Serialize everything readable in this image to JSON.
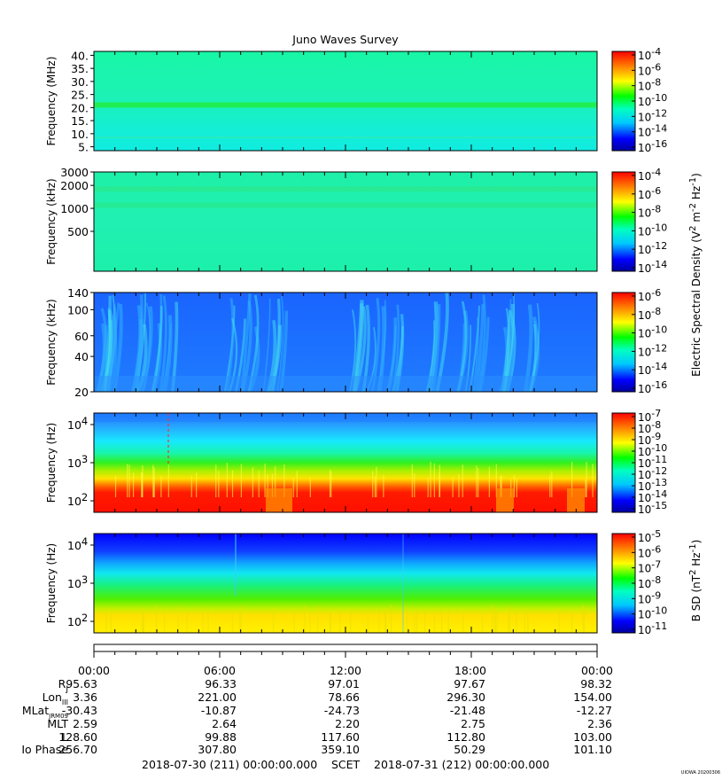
{
  "title": "Juno Waves Survey",
  "footer_credit": "UIOWA 20200306",
  "chart_data": [
    {
      "type": "heatmap",
      "panel": "HFR high",
      "ylabel": "Frequency (MHz)",
      "yticks": [
        "40.",
        "35.",
        "30.",
        "25.",
        "20.",
        "15.",
        "10.",
        "5."
      ],
      "ylim": [
        3.5,
        41.5
      ],
      "scale": "linear",
      "colorbar": {
        "ticks": [
          "10^-4",
          "10^-6",
          "10^-8",
          "10^-10",
          "10^-12",
          "10^-14",
          "10^-16"
        ]
      },
      "bands": [
        {
          "freq": 21,
          "description_level": "10^-11"
        }
      ]
    },
    {
      "type": "heatmap",
      "panel": "HFR low",
      "ylabel": "Frequency (kHz)",
      "yticks": [
        "3000",
        "2000",
        "1000",
        "500"
      ],
      "ylim": [
        150,
        3000
      ],
      "scale": "log",
      "colorbar": {
        "ticks": [
          "10^-4",
          "10^-6",
          "10^-8",
          "10^-10",
          "10^-12",
          "10^-14"
        ]
      },
      "bands": [
        {
          "freq": 1800
        },
        {
          "freq": 1100
        }
      ]
    },
    {
      "type": "heatmap",
      "panel": "LFR high",
      "ylabel": "Frequency (kHz)",
      "yticks": [
        "140",
        "100",
        "60",
        "40",
        "20"
      ],
      "ylim": [
        20,
        140
      ],
      "scale": "log",
      "colorbar": {
        "ticks": [
          "10^-6",
          "10^-8",
          "10^-10",
          "10^-12",
          "10^-14",
          "10^-16"
        ]
      }
    },
    {
      "type": "heatmap",
      "panel": "LFR low",
      "ylabel": "Frequency (Hz)",
      "yticks": [
        "10^4",
        "10^3",
        "10^2"
      ],
      "ylim": [
        50,
        20000
      ],
      "scale": "log",
      "colorbar": {
        "ticks": [
          "10^-7",
          "10^-8",
          "10^-9",
          "10^-10",
          "10^-11",
          "10^-12",
          "10^-13",
          "10^-14",
          "10^-15"
        ]
      }
    },
    {
      "type": "heatmap",
      "panel": "Magnetic",
      "ylabel": "Frequency (Hz)",
      "yticks": [
        "10^4",
        "10^3",
        "10^2"
      ],
      "ylim": [
        50,
        20000
      ],
      "scale": "log",
      "colorbar": {
        "ticks": [
          "10^-5",
          "10^-6",
          "10^-7",
          "10^-8",
          "10^-9",
          "10^-10",
          "10^-11"
        ]
      }
    }
  ],
  "electric_label": "Electric Spectral Density (V^2 m^-2 Hz^-1)",
  "magnetic_label": "B SD (nT^2 Hz^-1)",
  "time_axis": {
    "ticks": [
      "00:00",
      "06:00",
      "12:00",
      "18:00",
      "00:00"
    ]
  },
  "ephemeris": {
    "labels": [
      "R_J",
      "Lon_III",
      "MLat_JRM09",
      "MLT",
      "L",
      "Io Phase"
    ],
    "rows": [
      [
        "95.63",
        "96.33",
        "97.01",
        "97.67",
        "98.32"
      ],
      [
        "3.36",
        "221.00",
        "78.66",
        "296.30",
        "154.00"
      ],
      [
        "-30.43",
        "-10.87",
        "-24.73",
        "-21.48",
        "-12.27"
      ],
      [
        "2.59",
        "2.64",
        "2.20",
        "2.75",
        "2.36"
      ],
      [
        "128.60",
        "99.88",
        "117.60",
        "112.80",
        "103.00"
      ],
      [
        "256.70",
        "307.80",
        "359.10",
        "50.29",
        "101.10"
      ]
    ]
  },
  "footer": {
    "start": "2018-07-30 (211) 00:00:00.000",
    "scet": "SCET",
    "end": "2018-07-31 (212) 00:00:00.000"
  }
}
